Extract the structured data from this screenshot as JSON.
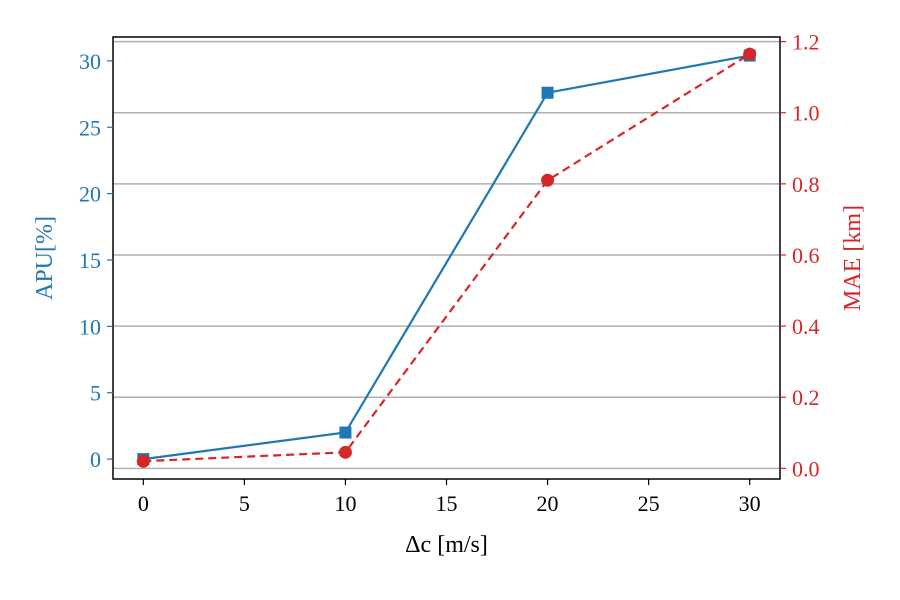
{
  "chart_data": {
    "type": "line",
    "xlabel": "Δc [m/s]",
    "ylabel": "APU[%]",
    "ylabel_right": "MAE [km]",
    "x": [
      0,
      10,
      20,
      30
    ],
    "xlim": [
      -1.5,
      31.5
    ],
    "x_ticks": [
      0,
      5,
      10,
      15,
      20,
      25,
      30
    ],
    "y_left_lim": [
      -1.5,
      31.8
    ],
    "y_left_ticks": [
      0,
      5,
      10,
      15,
      20,
      25,
      30
    ],
    "y_right_lim": [
      -0.03,
      1.213
    ],
    "y_right_ticks": [
      "0.0",
      "0.2",
      "0.4",
      "0.6",
      "0.8",
      "1.0",
      "1.2"
    ],
    "grid": "horizontal, right axis",
    "legend": "none",
    "series": [
      {
        "axis": "left",
        "values": [
          0.0,
          2.0,
          27.6,
          30.4
        ],
        "color": "#1f77b4",
        "marker": "square",
        "linestyle": "solid"
      },
      {
        "axis": "right",
        "values": [
          0.02,
          0.045,
          0.81,
          1.165
        ],
        "color": "#d62728",
        "marker": "circle",
        "linestyle": "dashed"
      }
    ]
  }
}
